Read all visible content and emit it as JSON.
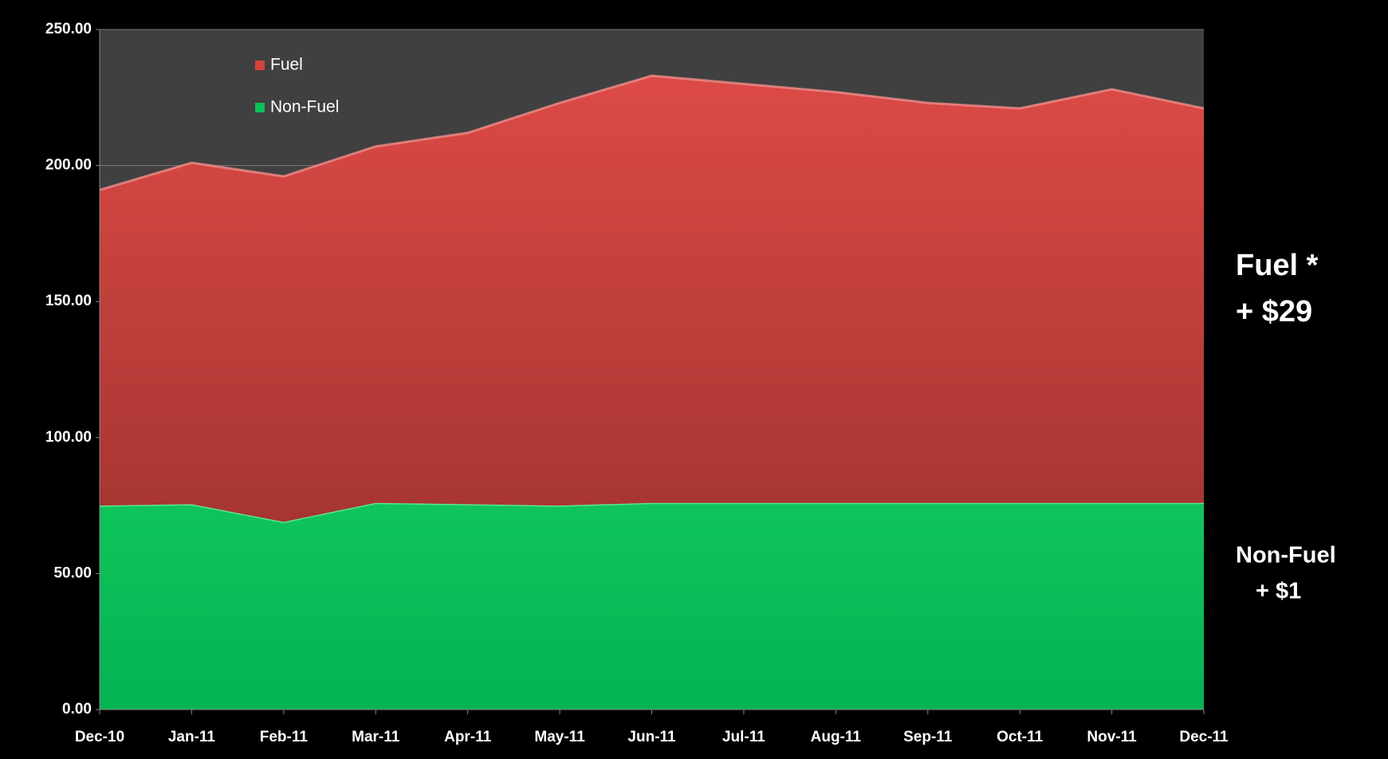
{
  "chart_data": {
    "type": "stacked_area",
    "categories": [
      "Dec-10",
      "Jan-11",
      "Feb-11",
      "Mar-11",
      "Apr-11",
      "May-11",
      "Jun-11",
      "Jul-11",
      "Aug-11",
      "Sep-11",
      "Oct-11",
      "Nov-11",
      "Dec-11"
    ],
    "series": [
      {
        "name": "Non-Fuel",
        "color": "#0cbf58",
        "values": [
          75,
          75.5,
          69,
          76,
          75.5,
          75,
          76,
          76,
          76,
          76,
          76,
          76,
          76
        ]
      },
      {
        "name": "Fuel",
        "color": "#d2443f",
        "values": [
          116,
          125.5,
          127,
          131,
          136.5,
          148,
          157,
          154,
          151,
          147,
          145,
          152,
          145
        ]
      }
    ],
    "ylim": [
      0,
      250
    ],
    "yticks": [
      {
        "value": 0,
        "label": "0.00"
      },
      {
        "value": 50,
        "label": "50.00"
      },
      {
        "value": 100,
        "label": "100.00"
      },
      {
        "value": 150,
        "label": "150.00"
      },
      {
        "value": 200,
        "label": "200.00"
      },
      {
        "value": 250,
        "label": "250.00"
      }
    ],
    "grid": true,
    "legend": "top-left",
    "annotations": [
      "Fuel *",
      "+ $29",
      "Non-Fuel",
      "+ $1"
    ]
  }
}
